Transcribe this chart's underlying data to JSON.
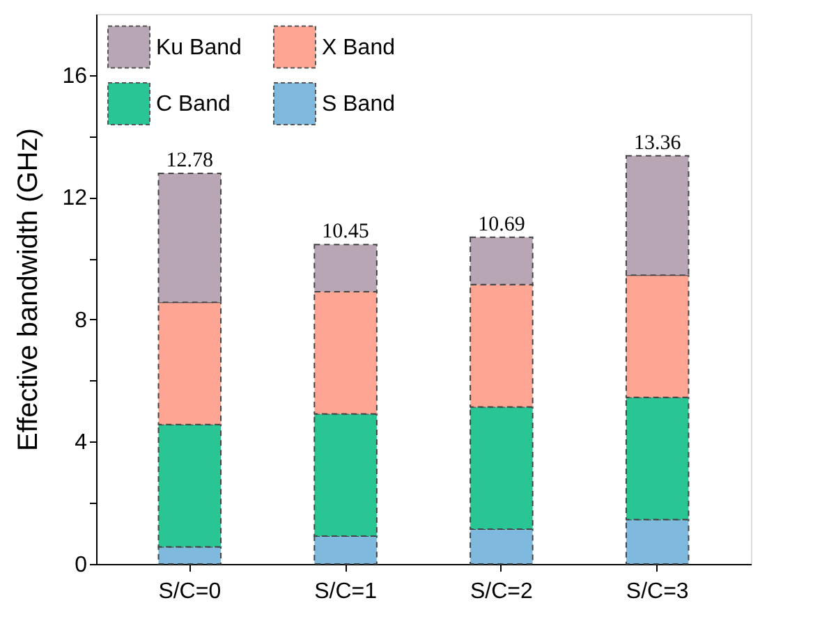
{
  "chart_data": {
    "type": "bar",
    "stacked": true,
    "ylabel": "Effective bandwidth (GHz)",
    "categories": [
      "S/C=0",
      "S/C=1",
      "S/C=2",
      "S/C=3"
    ],
    "series": [
      {
        "name": "S Band",
        "color": "#7fb9dd",
        "values": [
          0.56,
          0.91,
          1.14,
          1.45
        ]
      },
      {
        "name": "C Band",
        "color": "#2ac594",
        "values": [
          4.0,
          4.0,
          4.0,
          4.0
        ]
      },
      {
        "name": "X Band",
        "color": "#fea593",
        "values": [
          4.0,
          4.0,
          4.0,
          4.0
        ]
      },
      {
        "name": "Ku Band",
        "color": "#b9a6b5",
        "values": [
          4.22,
          1.54,
          1.55,
          3.91
        ]
      }
    ],
    "totals": [
      "12.78",
      "10.45",
      "10.69",
      "13.36"
    ],
    "ylim": [
      0,
      18
    ],
    "yticks": [
      0,
      {
        "value": 2,
        "label": null
      },
      4,
      {
        "value": 6,
        "label": null
      },
      8,
      {
        "value": 10,
        "label": null
      },
      12,
      {
        "value": 14,
        "label": null
      },
      16
    ],
    "grid": false,
    "legend": "top left"
  }
}
